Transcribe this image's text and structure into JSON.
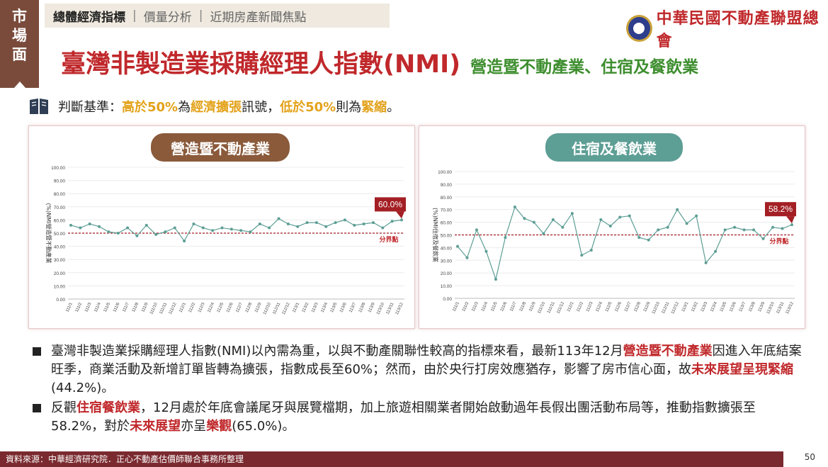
{
  "side_tab": {
    "label_lines": [
      "市",
      "場",
      "面"
    ]
  },
  "nav": {
    "tabs": [
      "總體經濟指標",
      "價量分析",
      "近期房產新聞焦點"
    ],
    "separator": "|"
  },
  "logo": {
    "org_name": "中華民國不動產聯盟總會"
  },
  "title": {
    "main": "臺灣非製造業採購經理人指數(NMI)",
    "sub": "營造暨不動產業、住宿及餐飲業"
  },
  "criterion": {
    "label": "判斷基準：",
    "p1": "高於50%",
    "p2": "為",
    "p3": "經濟擴張",
    "p4": "訊號，",
    "p5": "低於50%",
    "p6": "則為",
    "p7": "緊縮",
    "p8": "。"
  },
  "colors": {
    "accent_red": "#c0282b",
    "accent_green": "#3e8e2f",
    "accent_yellow": "#e3a21a",
    "line_teal": "#5d9e95",
    "brown": "#8a5a3b"
  },
  "chart_data": [
    {
      "type": "line",
      "title": "營造暨不動產業",
      "ylabel": "(%)NMI營造暨不動產業",
      "ylim": [
        0,
        100
      ],
      "yticks": [
        "100.00",
        "90.00",
        "80.00",
        "70.00",
        "60.00",
        "50.00",
        "40.00",
        "30.00",
        "20.00",
        "10.00",
        "0.00"
      ],
      "x": [
        "111/1",
        "111/2",
        "111/3",
        "111/4",
        "111/5",
        "111/6",
        "111/7",
        "111/8",
        "111/9",
        "111/10",
        "111/11",
        "111/12",
        "112/1",
        "112/2",
        "112/3",
        "112/4",
        "112/5",
        "112/6",
        "112/7",
        "112/8",
        "112/9",
        "112/10",
        "112/11",
        "112/12",
        "113/1",
        "113/2",
        "113/3",
        "113/4",
        "113/5",
        "113/6",
        "113/7",
        "113/8",
        "113/9",
        "113/10",
        "113/11",
        "113/12"
      ],
      "values": [
        56,
        54,
        57,
        55,
        51,
        50,
        54,
        48,
        56,
        49,
        51,
        54,
        44,
        57,
        54,
        52,
        54,
        53,
        52,
        51,
        57,
        54,
        61,
        57,
        55,
        58,
        58,
        55,
        58,
        60,
        56,
        57,
        58,
        54,
        59,
        60
      ],
      "threshold": {
        "value": 50,
        "label": "分界點"
      },
      "callout": "60.0%"
    },
    {
      "type": "line",
      "title": "住宿及餐飲業",
      "ylabel": "(%)NMI住宿及餐飲業",
      "ylim": [
        0,
        100
      ],
      "yticks": [
        "100.00",
        "90.00",
        "80.00",
        "70.00",
        "60.00",
        "50.00",
        "40.00",
        "30.00",
        "20.00",
        "10.00",
        "0.00"
      ],
      "x": [
        "111/1",
        "111/2",
        "111/3",
        "111/4",
        "111/5",
        "111/6",
        "111/7",
        "111/8",
        "111/9",
        "111/10",
        "111/11",
        "111/12",
        "112/1",
        "112/2",
        "112/3",
        "112/4",
        "112/5",
        "112/6",
        "112/7",
        "112/8",
        "112/9",
        "112/10",
        "112/11",
        "112/12",
        "113/1",
        "113/2",
        "113/3",
        "113/4",
        "113/5",
        "113/6",
        "113/7",
        "113/8",
        "113/9",
        "113/10",
        "113/11",
        "113/12"
      ],
      "values": [
        41,
        32,
        54,
        37,
        15,
        48,
        72,
        63,
        60,
        51,
        62,
        56,
        67,
        34,
        38,
        62,
        57,
        64,
        65,
        48,
        46,
        54,
        56,
        70,
        59,
        65,
        28,
        37,
        54,
        56,
        54,
        54,
        47,
        56,
        55,
        58
      ],
      "threshold": {
        "value": 50,
        "label": "分界點"
      },
      "callout": "58.2%"
    }
  ],
  "bullets": [
    {
      "t1": "臺灣非製造業採購經理人指數(NMI)以內需為重，以與不動產關聯性較高的指標來看，最新113年12月",
      "t2": "營造暨不動產業",
      "t3": "因進入年底結案旺季，商業活動及新增訂單皆轉為擴張，指數成長至60%；然而，由於央行打房效應猶存，影響了房市信心面，故",
      "t4": "未來展望呈現緊縮",
      "t5": "(44.2%)。"
    },
    {
      "t1": "反觀",
      "t2": "住宿餐飲業",
      "t3": "，12月處於年底會議尾牙與展覽檔期，加上旅遊相關業者開始啟動過年長假出團活動布局等，推動指數擴張至58.2%，對於",
      "t4": "未來展望",
      "t5": "亦呈",
      "t6": "樂觀",
      "t7": "(65.0%)。"
    }
  ],
  "footer": {
    "source": "資料來源：中華經濟研究院．正心不動產估價師聯合事務所整理",
    "page": "50"
  }
}
